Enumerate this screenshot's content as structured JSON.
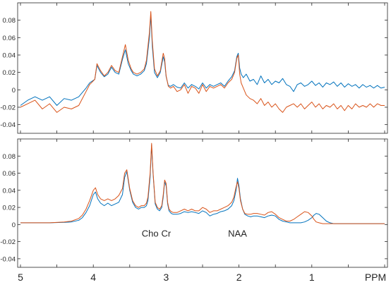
{
  "chart_data": [
    {
      "type": "line",
      "panel": "top",
      "xlabel": "",
      "ylabel": "",
      "xlim": [
        5.0,
        0.0
      ],
      "x_reversed": true,
      "ylim": [
        -0.05,
        0.1
      ],
      "yticks": [
        -0.04,
        -0.02,
        0,
        0.02,
        0.04,
        0.06,
        0.08
      ],
      "ytick_labels": [
        "-0.04",
        "-0.02",
        "0",
        "0.02",
        "0.04",
        "0.06",
        "0.08"
      ],
      "grid": false,
      "series": [
        {
          "color": "#0072BD",
          "x": [
            5.0,
            4.9,
            4.8,
            4.7,
            4.6,
            4.5,
            4.4,
            4.3,
            4.2,
            4.1,
            4.05,
            3.98,
            3.95,
            3.9,
            3.85,
            3.8,
            3.75,
            3.7,
            3.65,
            3.6,
            3.56,
            3.52,
            3.48,
            3.45,
            3.4,
            3.35,
            3.3,
            3.27,
            3.23,
            3.21,
            3.19,
            3.16,
            3.12,
            3.08,
            3.04,
            3.02,
            3.0,
            2.97,
            2.94,
            2.9,
            2.85,
            2.8,
            2.75,
            2.7,
            2.65,
            2.6,
            2.55,
            2.5,
            2.45,
            2.4,
            2.35,
            2.3,
            2.25,
            2.2,
            2.15,
            2.1,
            2.06,
            2.03,
            2.01,
            1.99,
            1.97,
            1.94,
            1.9,
            1.85,
            1.8,
            1.75,
            1.7,
            1.65,
            1.6,
            1.55,
            1.5,
            1.45,
            1.4,
            1.35,
            1.3,
            1.25,
            1.2,
            1.15,
            1.1,
            1.05,
            1.0,
            0.95,
            0.9,
            0.85,
            0.8,
            0.75,
            0.7,
            0.65,
            0.6,
            0.55,
            0.5,
            0.45,
            0.4,
            0.35,
            0.3,
            0.25,
            0.2,
            0.15,
            0.1,
            0.05,
            0.0
          ],
          "y": [
            -0.018,
            -0.012,
            -0.008,
            -0.012,
            -0.008,
            -0.018,
            -0.01,
            -0.012,
            -0.008,
            0.002,
            0.008,
            0.012,
            0.028,
            0.02,
            0.015,
            0.018,
            0.026,
            0.02,
            0.018,
            0.035,
            0.046,
            0.03,
            0.022,
            0.018,
            0.016,
            0.018,
            0.022,
            0.03,
            0.06,
            0.086,
            0.05,
            0.02,
            0.014,
            0.02,
            0.038,
            0.032,
            0.015,
            0.005,
            0.004,
            0.006,
            0.003,
            0.002,
            0.008,
            0.002,
            0.006,
            0.004,
            0.001,
            0.008,
            0.002,
            0.006,
            0.004,
            0.006,
            0.008,
            0.004,
            0.01,
            0.015,
            0.022,
            0.038,
            0.042,
            0.025,
            0.018,
            0.014,
            0.018,
            0.01,
            0.012,
            0.006,
            0.016,
            0.008,
            0.012,
            0.006,
            0.01,
            0.008,
            0.013,
            0.006,
            0.004,
            -0.002,
            0.006,
            0.008,
            0.004,
            0.006,
            0.01,
            0.005,
            0.008,
            0.003,
            0.008,
            0.006,
            0.009,
            0.004,
            0.008,
            0.003,
            0.007,
            0.004,
            0.006,
            0.002,
            0.006,
            0.003,
            0.005,
            0.002,
            0.005,
            0.002,
            0.003
          ]
        },
        {
          "color": "#D95319",
          "x": [
            5.0,
            4.9,
            4.8,
            4.7,
            4.6,
            4.5,
            4.4,
            4.3,
            4.2,
            4.1,
            4.05,
            3.98,
            3.95,
            3.9,
            3.85,
            3.8,
            3.75,
            3.7,
            3.65,
            3.6,
            3.56,
            3.52,
            3.48,
            3.45,
            3.4,
            3.35,
            3.3,
            3.27,
            3.23,
            3.21,
            3.19,
            3.16,
            3.12,
            3.08,
            3.04,
            3.02,
            3.0,
            2.97,
            2.94,
            2.9,
            2.85,
            2.8,
            2.75,
            2.7,
            2.65,
            2.6,
            2.55,
            2.5,
            2.45,
            2.4,
            2.35,
            2.3,
            2.25,
            2.2,
            2.15,
            2.1,
            2.06,
            2.03,
            2.01,
            1.99,
            1.97,
            1.94,
            1.9,
            1.85,
            1.8,
            1.75,
            1.7,
            1.65,
            1.6,
            1.55,
            1.5,
            1.45,
            1.4,
            1.35,
            1.3,
            1.25,
            1.2,
            1.15,
            1.1,
            1.05,
            1.0,
            0.95,
            0.9,
            0.85,
            0.8,
            0.75,
            0.7,
            0.65,
            0.6,
            0.55,
            0.5,
            0.45,
            0.4,
            0.35,
            0.3,
            0.25,
            0.2,
            0.15,
            0.1,
            0.05,
            0.0
          ],
          "y": [
            -0.02,
            -0.016,
            -0.012,
            -0.022,
            -0.016,
            -0.026,
            -0.02,
            -0.022,
            -0.018,
            -0.002,
            0.006,
            0.012,
            0.03,
            0.022,
            0.016,
            0.02,
            0.028,
            0.022,
            0.02,
            0.038,
            0.052,
            0.034,
            0.024,
            0.02,
            0.018,
            0.02,
            0.024,
            0.034,
            0.066,
            0.09,
            0.056,
            0.024,
            0.016,
            0.022,
            0.042,
            0.036,
            0.016,
            0.004,
            0.002,
            0.004,
            -0.002,
            0.0,
            0.006,
            -0.004,
            0.004,
            0.002,
            -0.004,
            0.006,
            -0.002,
            0.004,
            0.002,
            0.004,
            0.006,
            0.002,
            0.008,
            0.012,
            0.02,
            0.036,
            0.04,
            0.018,
            0.008,
            0.002,
            -0.006,
            -0.01,
            -0.012,
            -0.016,
            -0.01,
            -0.018,
            -0.014,
            -0.02,
            -0.016,
            -0.022,
            -0.026,
            -0.02,
            -0.018,
            -0.016,
            -0.02,
            -0.016,
            -0.022,
            -0.018,
            -0.014,
            -0.02,
            -0.016,
            -0.022,
            -0.018,
            -0.02,
            -0.016,
            -0.022,
            -0.018,
            -0.024,
            -0.018,
            -0.022,
            -0.016,
            -0.02,
            -0.018,
            -0.02,
            -0.016,
            -0.02,
            -0.016,
            -0.018,
            -0.018
          ]
        }
      ]
    },
    {
      "type": "line",
      "panel": "bottom",
      "xlabel": "PPM",
      "ylabel": "",
      "xlim": [
        5.0,
        0.0
      ],
      "x_reversed": true,
      "xticks": [
        5,
        4,
        3,
        2,
        1
      ],
      "xtick_labels": [
        "5",
        "4",
        "3",
        "2",
        "1"
      ],
      "ylim": [
        -0.05,
        0.1
      ],
      "yticks": [
        -0.04,
        -0.02,
        0,
        0.02,
        0.04,
        0.06,
        0.08
      ],
      "ytick_labels": [
        "-0.04",
        "-0.02",
        "0",
        "0.02",
        "0.04",
        "0.06",
        "0.08"
      ],
      "grid": false,
      "annotations": [
        {
          "text": "Cho",
          "x": 3.22,
          "y": -0.006
        },
        {
          "text": "Cr",
          "x": 3.0,
          "y": -0.006
        },
        {
          "text": "NAA",
          "x": 2.02,
          "y": -0.006
        }
      ],
      "series": [
        {
          "color": "#0072BD",
          "x": [
            5.0,
            4.8,
            4.6,
            4.4,
            4.3,
            4.2,
            4.15,
            4.1,
            4.05,
            4.0,
            3.97,
            3.94,
            3.9,
            3.85,
            3.8,
            3.75,
            3.7,
            3.65,
            3.6,
            3.57,
            3.54,
            3.5,
            3.46,
            3.42,
            3.38,
            3.34,
            3.3,
            3.27,
            3.25,
            3.22,
            3.2,
            3.18,
            3.15,
            3.12,
            3.09,
            3.06,
            3.04,
            3.02,
            3.0,
            2.98,
            2.96,
            2.93,
            2.9,
            2.85,
            2.8,
            2.75,
            2.7,
            2.65,
            2.6,
            2.55,
            2.5,
            2.45,
            2.4,
            2.35,
            2.3,
            2.25,
            2.2,
            2.15,
            2.1,
            2.07,
            2.04,
            2.02,
            2.0,
            1.98,
            1.95,
            1.92,
            1.88,
            1.84,
            1.8,
            1.75,
            1.7,
            1.65,
            1.6,
            1.55,
            1.5,
            1.45,
            1.4,
            1.35,
            1.3,
            1.25,
            1.2,
            1.15,
            1.1,
            1.05,
            1.0,
            0.97,
            0.94,
            0.9,
            0.85,
            0.8,
            0.75,
            0.7,
            0.65,
            0.6,
            0.5,
            0.4,
            0.3,
            0.2,
            0.1,
            0.0
          ],
          "y": [
            0.002,
            0.002,
            0.002,
            0.0025,
            0.003,
            0.005,
            0.008,
            0.014,
            0.022,
            0.035,
            0.038,
            0.03,
            0.025,
            0.022,
            0.025,
            0.022,
            0.024,
            0.026,
            0.035,
            0.055,
            0.062,
            0.04,
            0.026,
            0.02,
            0.018,
            0.02,
            0.02,
            0.022,
            0.028,
            0.055,
            0.093,
            0.06,
            0.024,
            0.018,
            0.016,
            0.02,
            0.032,
            0.05,
            0.045,
            0.024,
            0.016,
            0.013,
            0.012,
            0.012,
            0.013,
            0.015,
            0.014,
            0.015,
            0.014,
            0.013,
            0.016,
            0.014,
            0.01,
            0.012,
            0.013,
            0.015,
            0.016,
            0.018,
            0.022,
            0.028,
            0.04,
            0.054,
            0.045,
            0.03,
            0.018,
            0.012,
            0.01,
            0.009,
            0.01,
            0.01,
            0.009,
            0.008,
            0.01,
            0.011,
            0.01,
            0.006,
            0.004,
            0.003,
            0.002,
            0.002,
            0.002,
            0.002,
            0.003,
            0.005,
            0.008,
            0.011,
            0.013,
            0.012,
            0.008,
            0.004,
            0.002,
            0.001,
            0.001,
            0.001,
            0.001,
            0.001,
            0.001,
            0.001,
            0.001,
            0.001
          ]
        },
        {
          "color": "#D95319",
          "x": [
            5.0,
            4.8,
            4.6,
            4.4,
            4.3,
            4.2,
            4.15,
            4.1,
            4.05,
            4.0,
            3.97,
            3.94,
            3.9,
            3.85,
            3.8,
            3.75,
            3.7,
            3.65,
            3.6,
            3.57,
            3.54,
            3.5,
            3.46,
            3.42,
            3.38,
            3.34,
            3.3,
            3.27,
            3.25,
            3.22,
            3.2,
            3.18,
            3.15,
            3.12,
            3.09,
            3.06,
            3.04,
            3.02,
            3.0,
            2.98,
            2.96,
            2.93,
            2.9,
            2.85,
            2.8,
            2.75,
            2.7,
            2.65,
            2.6,
            2.55,
            2.5,
            2.45,
            2.4,
            2.35,
            2.3,
            2.25,
            2.2,
            2.15,
            2.1,
            2.07,
            2.04,
            2.02,
            2.0,
            1.98,
            1.95,
            1.92,
            1.88,
            1.84,
            1.8,
            1.75,
            1.7,
            1.65,
            1.6,
            1.55,
            1.5,
            1.45,
            1.4,
            1.35,
            1.3,
            1.25,
            1.2,
            1.15,
            1.1,
            1.05,
            1.0,
            0.97,
            0.94,
            0.9,
            0.85,
            0.8,
            0.75,
            0.7,
            0.65,
            0.6,
            0.5,
            0.4,
            0.3,
            0.2,
            0.1,
            0.0
          ],
          "y": [
            0.002,
            0.002,
            0.002,
            0.003,
            0.004,
            0.007,
            0.011,
            0.018,
            0.028,
            0.04,
            0.043,
            0.035,
            0.03,
            0.028,
            0.03,
            0.028,
            0.03,
            0.034,
            0.042,
            0.06,
            0.064,
            0.042,
            0.028,
            0.022,
            0.02,
            0.022,
            0.022,
            0.025,
            0.032,
            0.06,
            0.095,
            0.062,
            0.026,
            0.02,
            0.018,
            0.022,
            0.035,
            0.052,
            0.048,
            0.026,
            0.018,
            0.015,
            0.014,
            0.014,
            0.016,
            0.018,
            0.016,
            0.018,
            0.016,
            0.016,
            0.02,
            0.018,
            0.014,
            0.016,
            0.016,
            0.018,
            0.02,
            0.022,
            0.026,
            0.032,
            0.044,
            0.05,
            0.042,
            0.028,
            0.018,
            0.013,
            0.012,
            0.012,
            0.013,
            0.013,
            0.012,
            0.011,
            0.014,
            0.015,
            0.012,
            0.008,
            0.006,
            0.004,
            0.004,
            0.006,
            0.009,
            0.012,
            0.015,
            0.014,
            0.01,
            0.006,
            0.003,
            0.002,
            0.001,
            0.001,
            0.001,
            0.001,
            0.001,
            0.001,
            0.001,
            0.001,
            0.001,
            0.001,
            0.001,
            0.001
          ]
        }
      ]
    }
  ]
}
